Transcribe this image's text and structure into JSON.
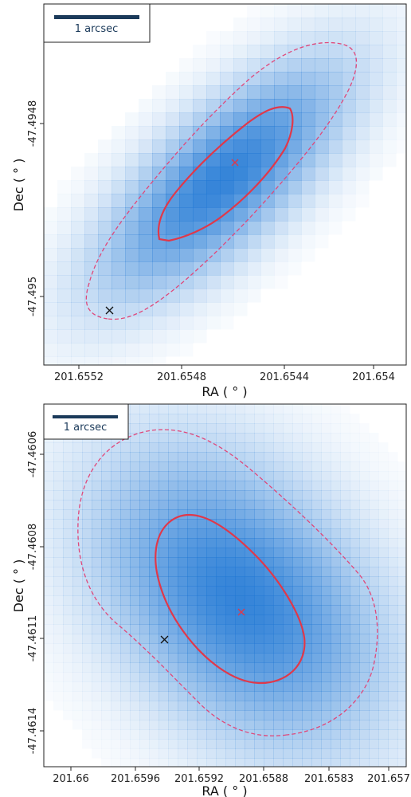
{
  "chart_data": [
    {
      "type": "heatmap",
      "xlabel": "RA ( ° )",
      "ylabel": "Dec ( ° )",
      "xlim": [
        201.6555,
        201.6537
      ],
      "ylim": [
        201.6555,
        201.6537
      ],
      "dec_lim": [
        -47.49518,
        -47.49465
      ],
      "x_ticks": [
        {
          "value": 201.6552,
          "label": "201.6552"
        },
        {
          "value": 201.6548,
          "label": "201.6548"
        },
        {
          "value": 201.6544,
          "label": "201.6544"
        },
        {
          "value": 201.654,
          "label": "201.654"
        }
      ],
      "y_ticks": [
        {
          "value": -47.4948,
          "label": "-47.4948"
        },
        {
          "value": -47.495,
          "label": "-47.495"
        }
      ],
      "scalebar_label": "1 arcsec",
      "source_marker": {
        "ra": 201.65458,
        "dec": -47.49489
      },
      "host_marker": {
        "ra": 201.65517,
        "dec": -47.49505
      },
      "colors": {
        "heat": "#1f77d4",
        "contour": "#e0384a",
        "dashed": "#e0487a",
        "scalebar": "#1b3a5a"
      }
    },
    {
      "type": "heatmap",
      "xlabel": "RA ( ° )",
      "ylabel": "Dec ( ° )",
      "xlim": [
        201.6601,
        201.6569
      ],
      "dec_lim": [
        -47.46155,
        -47.46049
      ],
      "x_ticks": [
        {
          "value": 201.66,
          "label": "201.66"
        },
        {
          "value": 201.6596,
          "label": "201.6596"
        },
        {
          "value": 201.6592,
          "label": "201.6592"
        },
        {
          "value": 201.6588,
          "label": "201.6588"
        },
        {
          "value": 201.6583,
          "label": "201.6583"
        },
        {
          "value": 201.657,
          "label": "201.657"
        }
      ],
      "y_ticks": [
        {
          "value": -47.4606,
          "label": "-47.4606"
        },
        {
          "value": -47.4608,
          "label": "-47.4608"
        },
        {
          "value": -47.4611,
          "label": "-47.4611"
        },
        {
          "value": -47.4614,
          "label": "-47.4614"
        }
      ],
      "scalebar_label": "1 arcsec",
      "source_marker": {
        "ra": 201.65896,
        "dec": -47.461
      },
      "host_marker": {
        "ra": 201.65946,
        "dec": -47.46112
      },
      "colors": {
        "heat": "#1f77d4",
        "contour": "#e0384a",
        "dashed": "#e0487a",
        "scalebar": "#1b3a5a"
      }
    }
  ]
}
